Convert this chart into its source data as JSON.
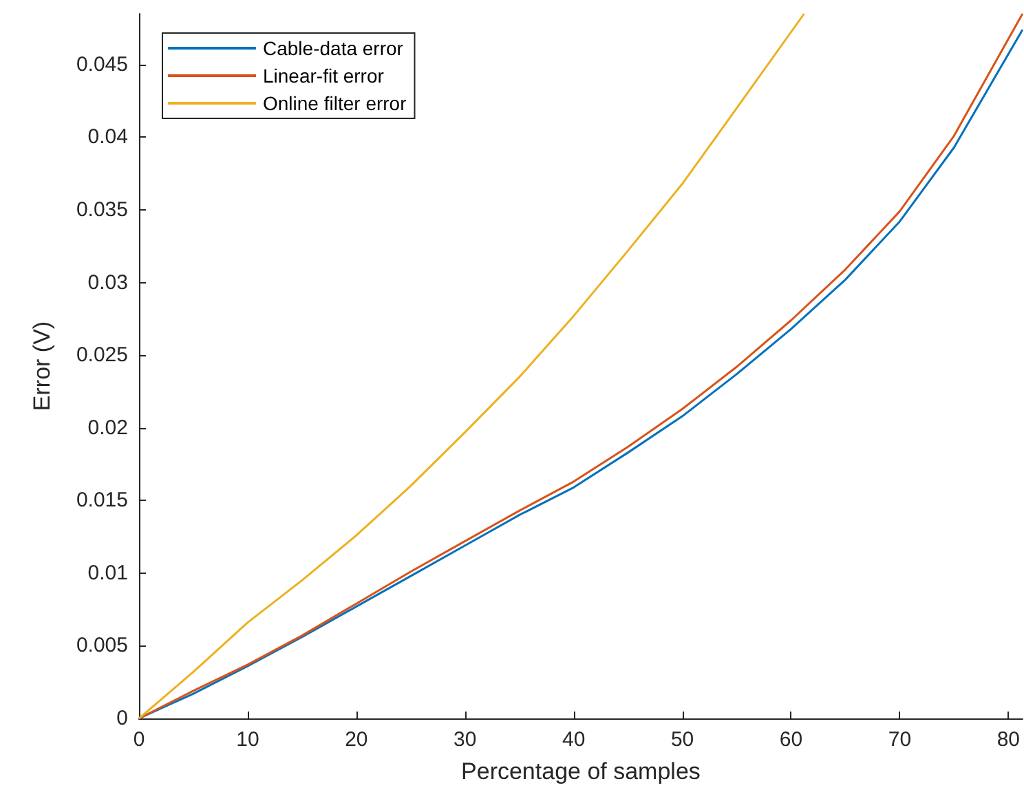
{
  "chart_data": {
    "type": "line",
    "xlabel": "Percentage of samples",
    "ylabel": "Error (V)",
    "xlim": [
      0,
      81.3
    ],
    "ylim": [
      0,
      0.0485
    ],
    "xticks": [
      0,
      10,
      20,
      30,
      40,
      50,
      60,
      70,
      80
    ],
    "yticks": [
      0,
      0.005,
      0.01,
      0.015,
      0.02,
      0.025,
      0.03,
      0.035,
      0.04,
      0.045
    ],
    "grid": false,
    "legend": "top left",
    "marker": "none",
    "line_style": "solid",
    "series": [
      {
        "name": "Cable-data error",
        "color": "#0072bd",
        "x": [
          0,
          5,
          10,
          15,
          20,
          25,
          30,
          35,
          40,
          45,
          50,
          55,
          60,
          65,
          70,
          75,
          81.3
        ],
        "values": [
          0,
          0.0017,
          0.0036,
          0.0056,
          0.0077,
          0.0098,
          0.0119,
          0.014,
          0.0159,
          0.0183,
          0.0208,
          0.0237,
          0.0268,
          0.0302,
          0.0342,
          0.0393,
          0.0474
        ]
      },
      {
        "name": "Linear-fit error",
        "color": "#d95319",
        "x": [
          0,
          5,
          10,
          15,
          20,
          25,
          30,
          35,
          40,
          45,
          50,
          55,
          60,
          65,
          70,
          75,
          81.3
        ],
        "values": [
          0,
          0.0019,
          0.0037,
          0.0057,
          0.0079,
          0.0101,
          0.0122,
          0.0143,
          0.0163,
          0.0187,
          0.0213,
          0.0242,
          0.0274,
          0.0309,
          0.0349,
          0.0401,
          0.0485
        ]
      },
      {
        "name": "Online filter error",
        "color": "#edb120",
        "x": [
          0,
          5,
          10,
          15,
          20,
          25,
          30,
          35,
          40,
          45,
          50,
          55,
          61.2
        ],
        "values": [
          0,
          0.0032,
          0.0066,
          0.0095,
          0.0126,
          0.016,
          0.0197,
          0.0235,
          0.0277,
          0.0322,
          0.0368,
          0.042,
          0.0485
        ]
      }
    ]
  }
}
